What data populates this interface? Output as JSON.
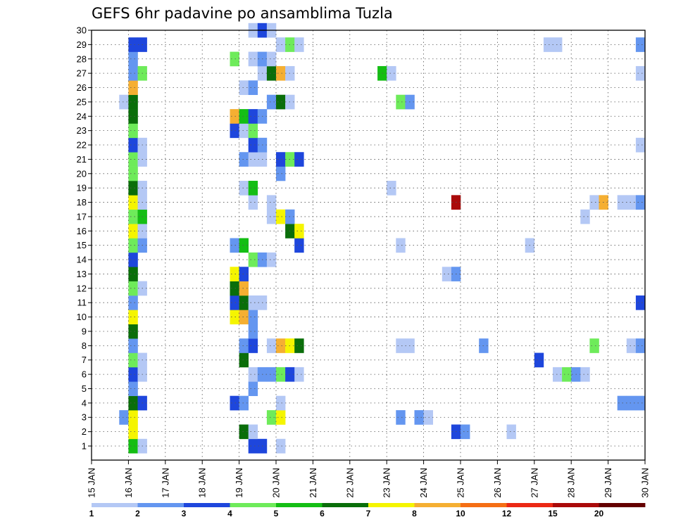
{
  "chart_data": {
    "type": "heatmap",
    "title": "GEFS 6hr padavine po ansamblima Tuzla",
    "x_tick_labels": [
      "15 JAN",
      "16 JAN",
      "17 JAN",
      "18 JAN",
      "19 JAN",
      "20 JAN",
      "21 JAN",
      "22 JAN",
      "23 JAN",
      "24 JAN",
      "25 JAN",
      "26 JAN",
      "27 JAN",
      "28 JAN",
      "29 JAN",
      "30 JAN"
    ],
    "y_tick_labels": [
      "1",
      "2",
      "3",
      "4",
      "5",
      "6",
      "7",
      "8",
      "9",
      "10",
      "11",
      "12",
      "13",
      "14",
      "15",
      "16",
      "17",
      "18",
      "19",
      "20",
      "21",
      "22",
      "23",
      "24",
      "25",
      "26",
      "27",
      "28",
      "29",
      "30"
    ],
    "x_range": [
      "15 JAN 00Z",
      "30 JAN 00Z"
    ],
    "steps_per_day": 4,
    "y_range": [
      1,
      30
    ],
    "grid": "dotted",
    "legend_position": "bottom",
    "levels": [
      "1",
      "2",
      "3",
      "4",
      "5",
      "6",
      "7",
      "8",
      "10",
      "12",
      "15",
      "20"
    ],
    "level_colors": [
      "#b4c8f5",
      "#6496f0",
      "#1e46dc",
      "#6eeb5a",
      "#14be14",
      "#0a6e0a",
      "#f5f500",
      "#f5af32",
      "#f56e14",
      "#eb2814",
      "#aa0a0a",
      "#640000"
    ],
    "cells": [
      {
        "m": 1,
        "s": 4,
        "c": 4
      },
      {
        "m": 1,
        "s": 5,
        "c": 0
      },
      {
        "m": 1,
        "s": 17,
        "c": 2
      },
      {
        "m": 1,
        "s": 18,
        "c": 2
      },
      {
        "m": 1,
        "s": 20,
        "c": 0
      },
      {
        "m": 2,
        "s": 4,
        "c": 6
      },
      {
        "m": 2,
        "s": 16,
        "c": 5
      },
      {
        "m": 2,
        "s": 17,
        "c": 0
      },
      {
        "m": 2,
        "s": 39,
        "c": 2
      },
      {
        "m": 2,
        "s": 40,
        "c": 1
      },
      {
        "m": 2,
        "s": 45,
        "c": 0
      },
      {
        "m": 3,
        "s": 3,
        "c": 1
      },
      {
        "m": 3,
        "s": 4,
        "c": 6
      },
      {
        "m": 3,
        "s": 19,
        "c": 3
      },
      {
        "m": 3,
        "s": 20,
        "c": 6
      },
      {
        "m": 3,
        "s": 33,
        "c": 1
      },
      {
        "m": 3,
        "s": 35,
        "c": 1
      },
      {
        "m": 3,
        "s": 36,
        "c": 0
      },
      {
        "m": 4,
        "s": 4,
        "c": 5
      },
      {
        "m": 4,
        "s": 5,
        "c": 2
      },
      {
        "m": 4,
        "s": 15,
        "c": 2
      },
      {
        "m": 4,
        "s": 16,
        "c": 1
      },
      {
        "m": 4,
        "s": 20,
        "c": 0
      },
      {
        "m": 4,
        "s": 57,
        "c": 1
      },
      {
        "m": 4,
        "s": 58,
        "c": 1
      },
      {
        "m": 4,
        "s": 59,
        "c": 1
      },
      {
        "m": 5,
        "s": 4,
        "c": 1
      },
      {
        "m": 5,
        "s": 17,
        "c": 1
      },
      {
        "m": 6,
        "s": 4,
        "c": 2
      },
      {
        "m": 6,
        "s": 5,
        "c": 0
      },
      {
        "m": 6,
        "s": 17,
        "c": 0
      },
      {
        "m": 6,
        "s": 18,
        "c": 1
      },
      {
        "m": 6,
        "s": 19,
        "c": 1
      },
      {
        "m": 6,
        "s": 20,
        "c": 3
      },
      {
        "m": 6,
        "s": 21,
        "c": 2
      },
      {
        "m": 6,
        "s": 22,
        "c": 0
      },
      {
        "m": 6,
        "s": 50,
        "c": 0
      },
      {
        "m": 6,
        "s": 51,
        "c": 3
      },
      {
        "m": 6,
        "s": 52,
        "c": 1
      },
      {
        "m": 6,
        "s": 53,
        "c": 0
      },
      {
        "m": 7,
        "s": 4,
        "c": 3
      },
      {
        "m": 7,
        "s": 5,
        "c": 0
      },
      {
        "m": 7,
        "s": 16,
        "c": 5
      },
      {
        "m": 7,
        "s": 48,
        "c": 2
      },
      {
        "m": 8,
        "s": 4,
        "c": 1
      },
      {
        "m": 8,
        "s": 16,
        "c": 1
      },
      {
        "m": 8,
        "s": 17,
        "c": 2
      },
      {
        "m": 8,
        "s": 19,
        "c": 0
      },
      {
        "m": 8,
        "s": 20,
        "c": 7
      },
      {
        "m": 8,
        "s": 21,
        "c": 6
      },
      {
        "m": 8,
        "s": 22,
        "c": 5
      },
      {
        "m": 8,
        "s": 33,
        "c": 0
      },
      {
        "m": 8,
        "s": 34,
        "c": 0
      },
      {
        "m": 8,
        "s": 42,
        "c": 1
      },
      {
        "m": 8,
        "s": 54,
        "c": 3
      },
      {
        "m": 8,
        "s": 58,
        "c": 0
      },
      {
        "m": 8,
        "s": 59,
        "c": 1
      },
      {
        "m": 9,
        "s": 4,
        "c": 5
      },
      {
        "m": 9,
        "s": 17,
        "c": 1
      },
      {
        "m": 10,
        "s": 4,
        "c": 6
      },
      {
        "m": 10,
        "s": 15,
        "c": 6
      },
      {
        "m": 10,
        "s": 16,
        "c": 7
      },
      {
        "m": 10,
        "s": 17,
        "c": 1
      },
      {
        "m": 11,
        "s": 4,
        "c": 1
      },
      {
        "m": 11,
        "s": 15,
        "c": 2
      },
      {
        "m": 11,
        "s": 16,
        "c": 5
      },
      {
        "m": 11,
        "s": 17,
        "c": 0
      },
      {
        "m": 11,
        "s": 18,
        "c": 0
      },
      {
        "m": 11,
        "s": 59,
        "c": 2
      },
      {
        "m": 12,
        "s": 4,
        "c": 3
      },
      {
        "m": 12,
        "s": 5,
        "c": 0
      },
      {
        "m": 12,
        "s": 15,
        "c": 5
      },
      {
        "m": 12,
        "s": 16,
        "c": 7
      },
      {
        "m": 13,
        "s": 4,
        "c": 5
      },
      {
        "m": 13,
        "s": 15,
        "c": 6
      },
      {
        "m": 13,
        "s": 16,
        "c": 2
      },
      {
        "m": 13,
        "s": 38,
        "c": 0
      },
      {
        "m": 13,
        "s": 39,
        "c": 1
      },
      {
        "m": 14,
        "s": 4,
        "c": 2
      },
      {
        "m": 14,
        "s": 17,
        "c": 3
      },
      {
        "m": 14,
        "s": 18,
        "c": 1
      },
      {
        "m": 14,
        "s": 19,
        "c": 0
      },
      {
        "m": 15,
        "s": 4,
        "c": 3
      },
      {
        "m": 15,
        "s": 5,
        "c": 1
      },
      {
        "m": 15,
        "s": 15,
        "c": 1
      },
      {
        "m": 15,
        "s": 16,
        "c": 4
      },
      {
        "m": 15,
        "s": 22,
        "c": 2
      },
      {
        "m": 15,
        "s": 33,
        "c": 0
      },
      {
        "m": 15,
        "s": 47,
        "c": 0
      },
      {
        "m": 16,
        "s": 4,
        "c": 6
      },
      {
        "m": 16,
        "s": 5,
        "c": 0
      },
      {
        "m": 16,
        "s": 21,
        "c": 5
      },
      {
        "m": 16,
        "s": 22,
        "c": 6
      },
      {
        "m": 17,
        "s": 4,
        "c": 3
      },
      {
        "m": 17,
        "s": 5,
        "c": 4
      },
      {
        "m": 17,
        "s": 19,
        "c": 0
      },
      {
        "m": 17,
        "s": 20,
        "c": 6
      },
      {
        "m": 17,
        "s": 21,
        "c": 1
      },
      {
        "m": 17,
        "s": 53,
        "c": 0
      },
      {
        "m": 18,
        "s": 4,
        "c": 6
      },
      {
        "m": 18,
        "s": 5,
        "c": 0
      },
      {
        "m": 18,
        "s": 17,
        "c": 0
      },
      {
        "m": 18,
        "s": 19,
        "c": 0
      },
      {
        "m": 18,
        "s": 39,
        "c": 10
      },
      {
        "m": 18,
        "s": 54,
        "c": 0
      },
      {
        "m": 18,
        "s": 55,
        "c": 7
      },
      {
        "m": 18,
        "s": 57,
        "c": 0
      },
      {
        "m": 18,
        "s": 58,
        "c": 0
      },
      {
        "m": 18,
        "s": 59,
        "c": 1
      },
      {
        "m": 19,
        "s": 4,
        "c": 5
      },
      {
        "m": 19,
        "s": 5,
        "c": 0
      },
      {
        "m": 19,
        "s": 16,
        "c": 0
      },
      {
        "m": 19,
        "s": 17,
        "c": 4
      },
      {
        "m": 19,
        "s": 32,
        "c": 0
      },
      {
        "m": 20,
        "s": 4,
        "c": 3
      },
      {
        "m": 20,
        "s": 20,
        "c": 1
      },
      {
        "m": 21,
        "s": 4,
        "c": 3
      },
      {
        "m": 21,
        "s": 5,
        "c": 0
      },
      {
        "m": 21,
        "s": 16,
        "c": 1
      },
      {
        "m": 21,
        "s": 17,
        "c": 0
      },
      {
        "m": 21,
        "s": 18,
        "c": 0
      },
      {
        "m": 21,
        "s": 20,
        "c": 2
      },
      {
        "m": 21,
        "s": 21,
        "c": 3
      },
      {
        "m": 21,
        "s": 22,
        "c": 2
      },
      {
        "m": 22,
        "s": 4,
        "c": 2
      },
      {
        "m": 22,
        "s": 5,
        "c": 0
      },
      {
        "m": 22,
        "s": 17,
        "c": 2
      },
      {
        "m": 22,
        "s": 18,
        "c": 1
      },
      {
        "m": 22,
        "s": 59,
        "c": 0
      },
      {
        "m": 23,
        "s": 4,
        "c": 3
      },
      {
        "m": 23,
        "s": 15,
        "c": 2
      },
      {
        "m": 23,
        "s": 16,
        "c": 0
      },
      {
        "m": 23,
        "s": 17,
        "c": 3
      },
      {
        "m": 24,
        "s": 4,
        "c": 5
      },
      {
        "m": 24,
        "s": 15,
        "c": 7
      },
      {
        "m": 24,
        "s": 16,
        "c": 4
      },
      {
        "m": 24,
        "s": 17,
        "c": 2
      },
      {
        "m": 24,
        "s": 18,
        "c": 1
      },
      {
        "m": 25,
        "s": 3,
        "c": 0
      },
      {
        "m": 25,
        "s": 4,
        "c": 5
      },
      {
        "m": 25,
        "s": 19,
        "c": 1
      },
      {
        "m": 25,
        "s": 20,
        "c": 5
      },
      {
        "m": 25,
        "s": 21,
        "c": 0
      },
      {
        "m": 25,
        "s": 33,
        "c": 3
      },
      {
        "m": 25,
        "s": 34,
        "c": 1
      },
      {
        "m": 26,
        "s": 4,
        "c": 7
      },
      {
        "m": 26,
        "s": 16,
        "c": 0
      },
      {
        "m": 26,
        "s": 17,
        "c": 1
      },
      {
        "m": 27,
        "s": 4,
        "c": 1
      },
      {
        "m": 27,
        "s": 5,
        "c": 3
      },
      {
        "m": 27,
        "s": 18,
        "c": 0
      },
      {
        "m": 27,
        "s": 19,
        "c": 5
      },
      {
        "m": 27,
        "s": 20,
        "c": 7
      },
      {
        "m": 27,
        "s": 21,
        "c": 0
      },
      {
        "m": 27,
        "s": 31,
        "c": 4
      },
      {
        "m": 27,
        "s": 32,
        "c": 0
      },
      {
        "m": 27,
        "s": 59,
        "c": 0
      },
      {
        "m": 28,
        "s": 4,
        "c": 1
      },
      {
        "m": 28,
        "s": 15,
        "c": 3
      },
      {
        "m": 28,
        "s": 17,
        "c": 0
      },
      {
        "m": 28,
        "s": 18,
        "c": 1
      },
      {
        "m": 28,
        "s": 19,
        "c": 0
      },
      {
        "m": 29,
        "s": 4,
        "c": 2
      },
      {
        "m": 29,
        "s": 5,
        "c": 2
      },
      {
        "m": 29,
        "s": 20,
        "c": 0
      },
      {
        "m": 29,
        "s": 21,
        "c": 3
      },
      {
        "m": 29,
        "s": 22,
        "c": 0
      },
      {
        "m": 29,
        "s": 49,
        "c": 0
      },
      {
        "m": 29,
        "s": 50,
        "c": 0
      },
      {
        "m": 29,
        "s": 59,
        "c": 1
      },
      {
        "m": 30,
        "s": 17,
        "c": 0
      },
      {
        "m": 30,
        "s": 18,
        "c": 2
      },
      {
        "m": 30,
        "s": 19,
        "c": 0
      }
    ]
  }
}
